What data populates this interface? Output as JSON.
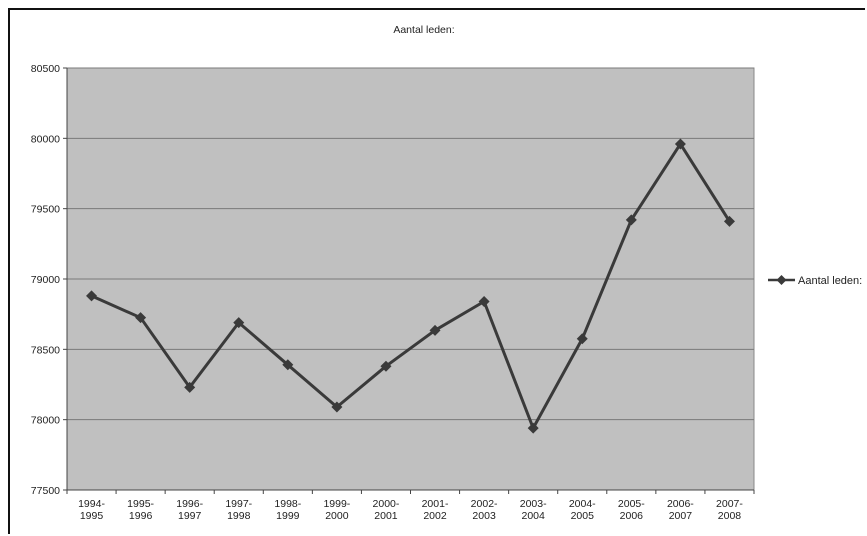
{
  "chart_data": {
    "type": "line",
    "title": "Aantal leden:",
    "xlabel": "",
    "ylabel": "",
    "categories": [
      [
        "1994-",
        "1995"
      ],
      [
        "1995-",
        "1996"
      ],
      [
        "1996-",
        "1997"
      ],
      [
        "1997-",
        "1998"
      ],
      [
        "1998-",
        "1999"
      ],
      [
        "1999-",
        "2000"
      ],
      [
        "2000-",
        "2001"
      ],
      [
        "2001-",
        "2002"
      ],
      [
        "2002-",
        "2003"
      ],
      [
        "2003-",
        "2004"
      ],
      [
        "2004-",
        "2005"
      ],
      [
        "2005-",
        "2006"
      ],
      [
        "2006-",
        "2007"
      ],
      [
        "2007-",
        "2008"
      ]
    ],
    "series": [
      {
        "name": "Aantal leden:",
        "values": [
          78880,
          78725,
          78230,
          78690,
          78390,
          78090,
          78380,
          78635,
          78840,
          77940,
          78575,
          79420,
          79960,
          79410
        ],
        "color": "#3a3a3a",
        "marker": "diamond"
      }
    ],
    "ylim": [
      77500,
      80500
    ],
    "yticks": [
      77500,
      78000,
      78500,
      79000,
      79500,
      80000,
      80500
    ],
    "grid": true,
    "plot_background": "#c0c0c0",
    "legend": "right"
  }
}
